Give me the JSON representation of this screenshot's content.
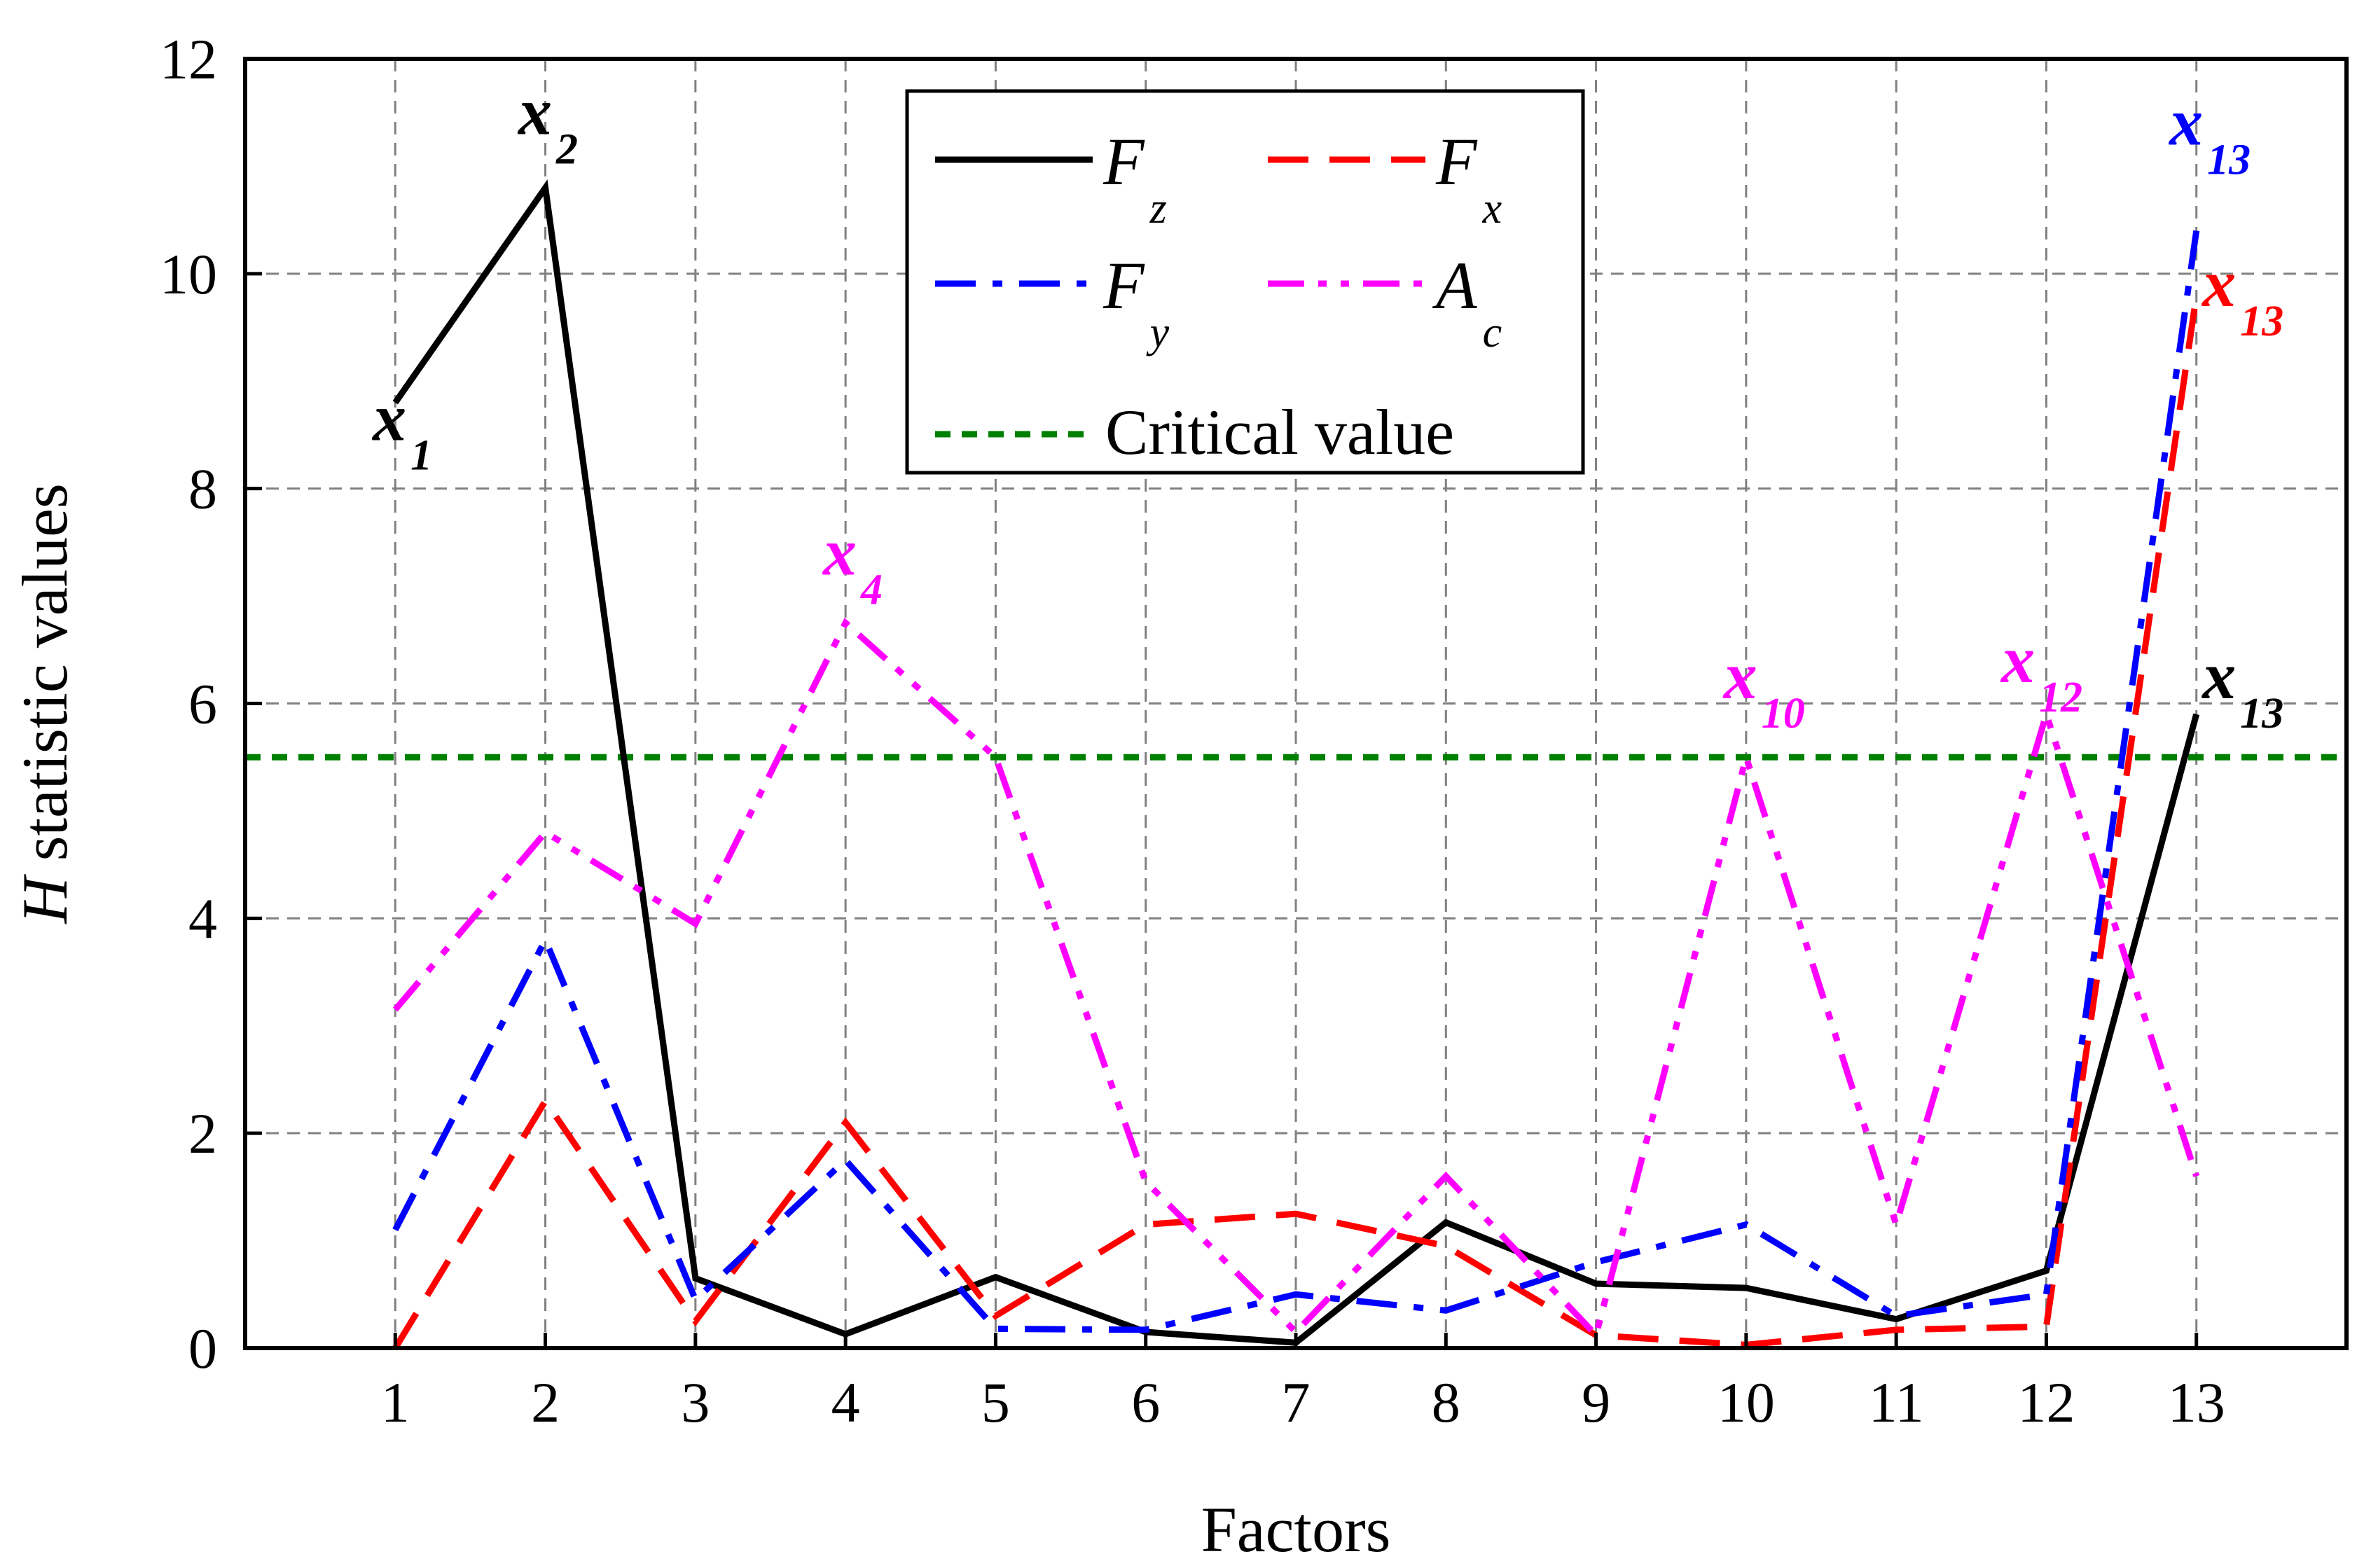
{
  "chart_data": {
    "type": "line",
    "title": "",
    "xlabel": "Factors",
    "ylabel_italic": "H",
    "ylabel_rest": " statistic values",
    "x": [
      1,
      2,
      3,
      4,
      5,
      6,
      7,
      8,
      9,
      10,
      11,
      12,
      13
    ],
    "x_tick_labels": [
      "1",
      "2",
      "3",
      "4",
      "5",
      "6",
      "7",
      "8",
      "9",
      "10",
      "11",
      "12",
      "13"
    ],
    "xlim": [
      0,
      14
    ],
    "ylim": [
      0,
      12
    ],
    "y_ticks": [
      0,
      2,
      4,
      6,
      8,
      10,
      12
    ],
    "y_tick_labels": [
      "0",
      "2",
      "4",
      "6",
      "8",
      "10",
      "12"
    ],
    "grid": true,
    "legend_position": "top-center",
    "series": [
      {
        "name": "F_z",
        "symbol": "F",
        "subscript": "z",
        "color": "#000000",
        "style": "solid",
        "values": [
          8.8,
          10.8,
          0.65,
          0.13,
          0.66,
          0.15,
          0.05,
          1.17,
          0.6,
          0.56,
          0.27,
          0.72,
          5.9
        ]
      },
      {
        "name": "F_x",
        "symbol": "F",
        "subscript": "x",
        "color": "#ff0000",
        "style": "dash",
        "values": [
          0.0,
          2.3,
          0.25,
          2.1,
          0.3,
          1.15,
          1.25,
          0.95,
          0.12,
          0.03,
          0.17,
          0.2,
          9.8
        ]
      },
      {
        "name": "F_y",
        "symbol": "F",
        "subscript": "y",
        "color": "#0000ff",
        "style": "dashdot",
        "values": [
          1.1,
          3.8,
          0.45,
          1.75,
          0.18,
          0.17,
          0.5,
          0.35,
          0.8,
          1.15,
          0.3,
          0.5,
          10.4
        ]
      },
      {
        "name": "A_c",
        "symbol": "A",
        "subscript": "c",
        "color": "#ff00ff",
        "style": "dashdotdot",
        "values": [
          3.15,
          4.8,
          3.95,
          6.75,
          5.5,
          1.55,
          0.15,
          1.6,
          0.12,
          5.5,
          1.15,
          5.9,
          1.6
        ]
      }
    ],
    "reference_line": {
      "name": "Critical value",
      "value": 5.5,
      "color": "#008000",
      "style": "dotted"
    },
    "annotations": [
      {
        "text": "x",
        "sub": "1",
        "x": 0.85,
        "y": 8.45,
        "color": "#000000"
      },
      {
        "text": "x",
        "sub": "2",
        "x": 1.82,
        "y": 11.3,
        "color": "#000000"
      },
      {
        "text": "x",
        "sub": "4",
        "x": 3.85,
        "y": 7.2,
        "color": "#ff00ff"
      },
      {
        "text": "x",
        "sub": "10",
        "x": 9.85,
        "y": 6.05,
        "color": "#ff00ff"
      },
      {
        "text": "x",
        "sub": "12",
        "x": 11.7,
        "y": 6.2,
        "color": "#ff00ff"
      },
      {
        "text": "x",
        "sub": "13",
        "x": 12.82,
        "y": 11.2,
        "color": "#0000ff"
      },
      {
        "text": "x",
        "sub": "13",
        "x": 13.04,
        "y": 9.7,
        "color": "#ff0000"
      },
      {
        "text": "x",
        "sub": "13",
        "x": 13.04,
        "y": 6.05,
        "color": "#000000"
      }
    ]
  }
}
